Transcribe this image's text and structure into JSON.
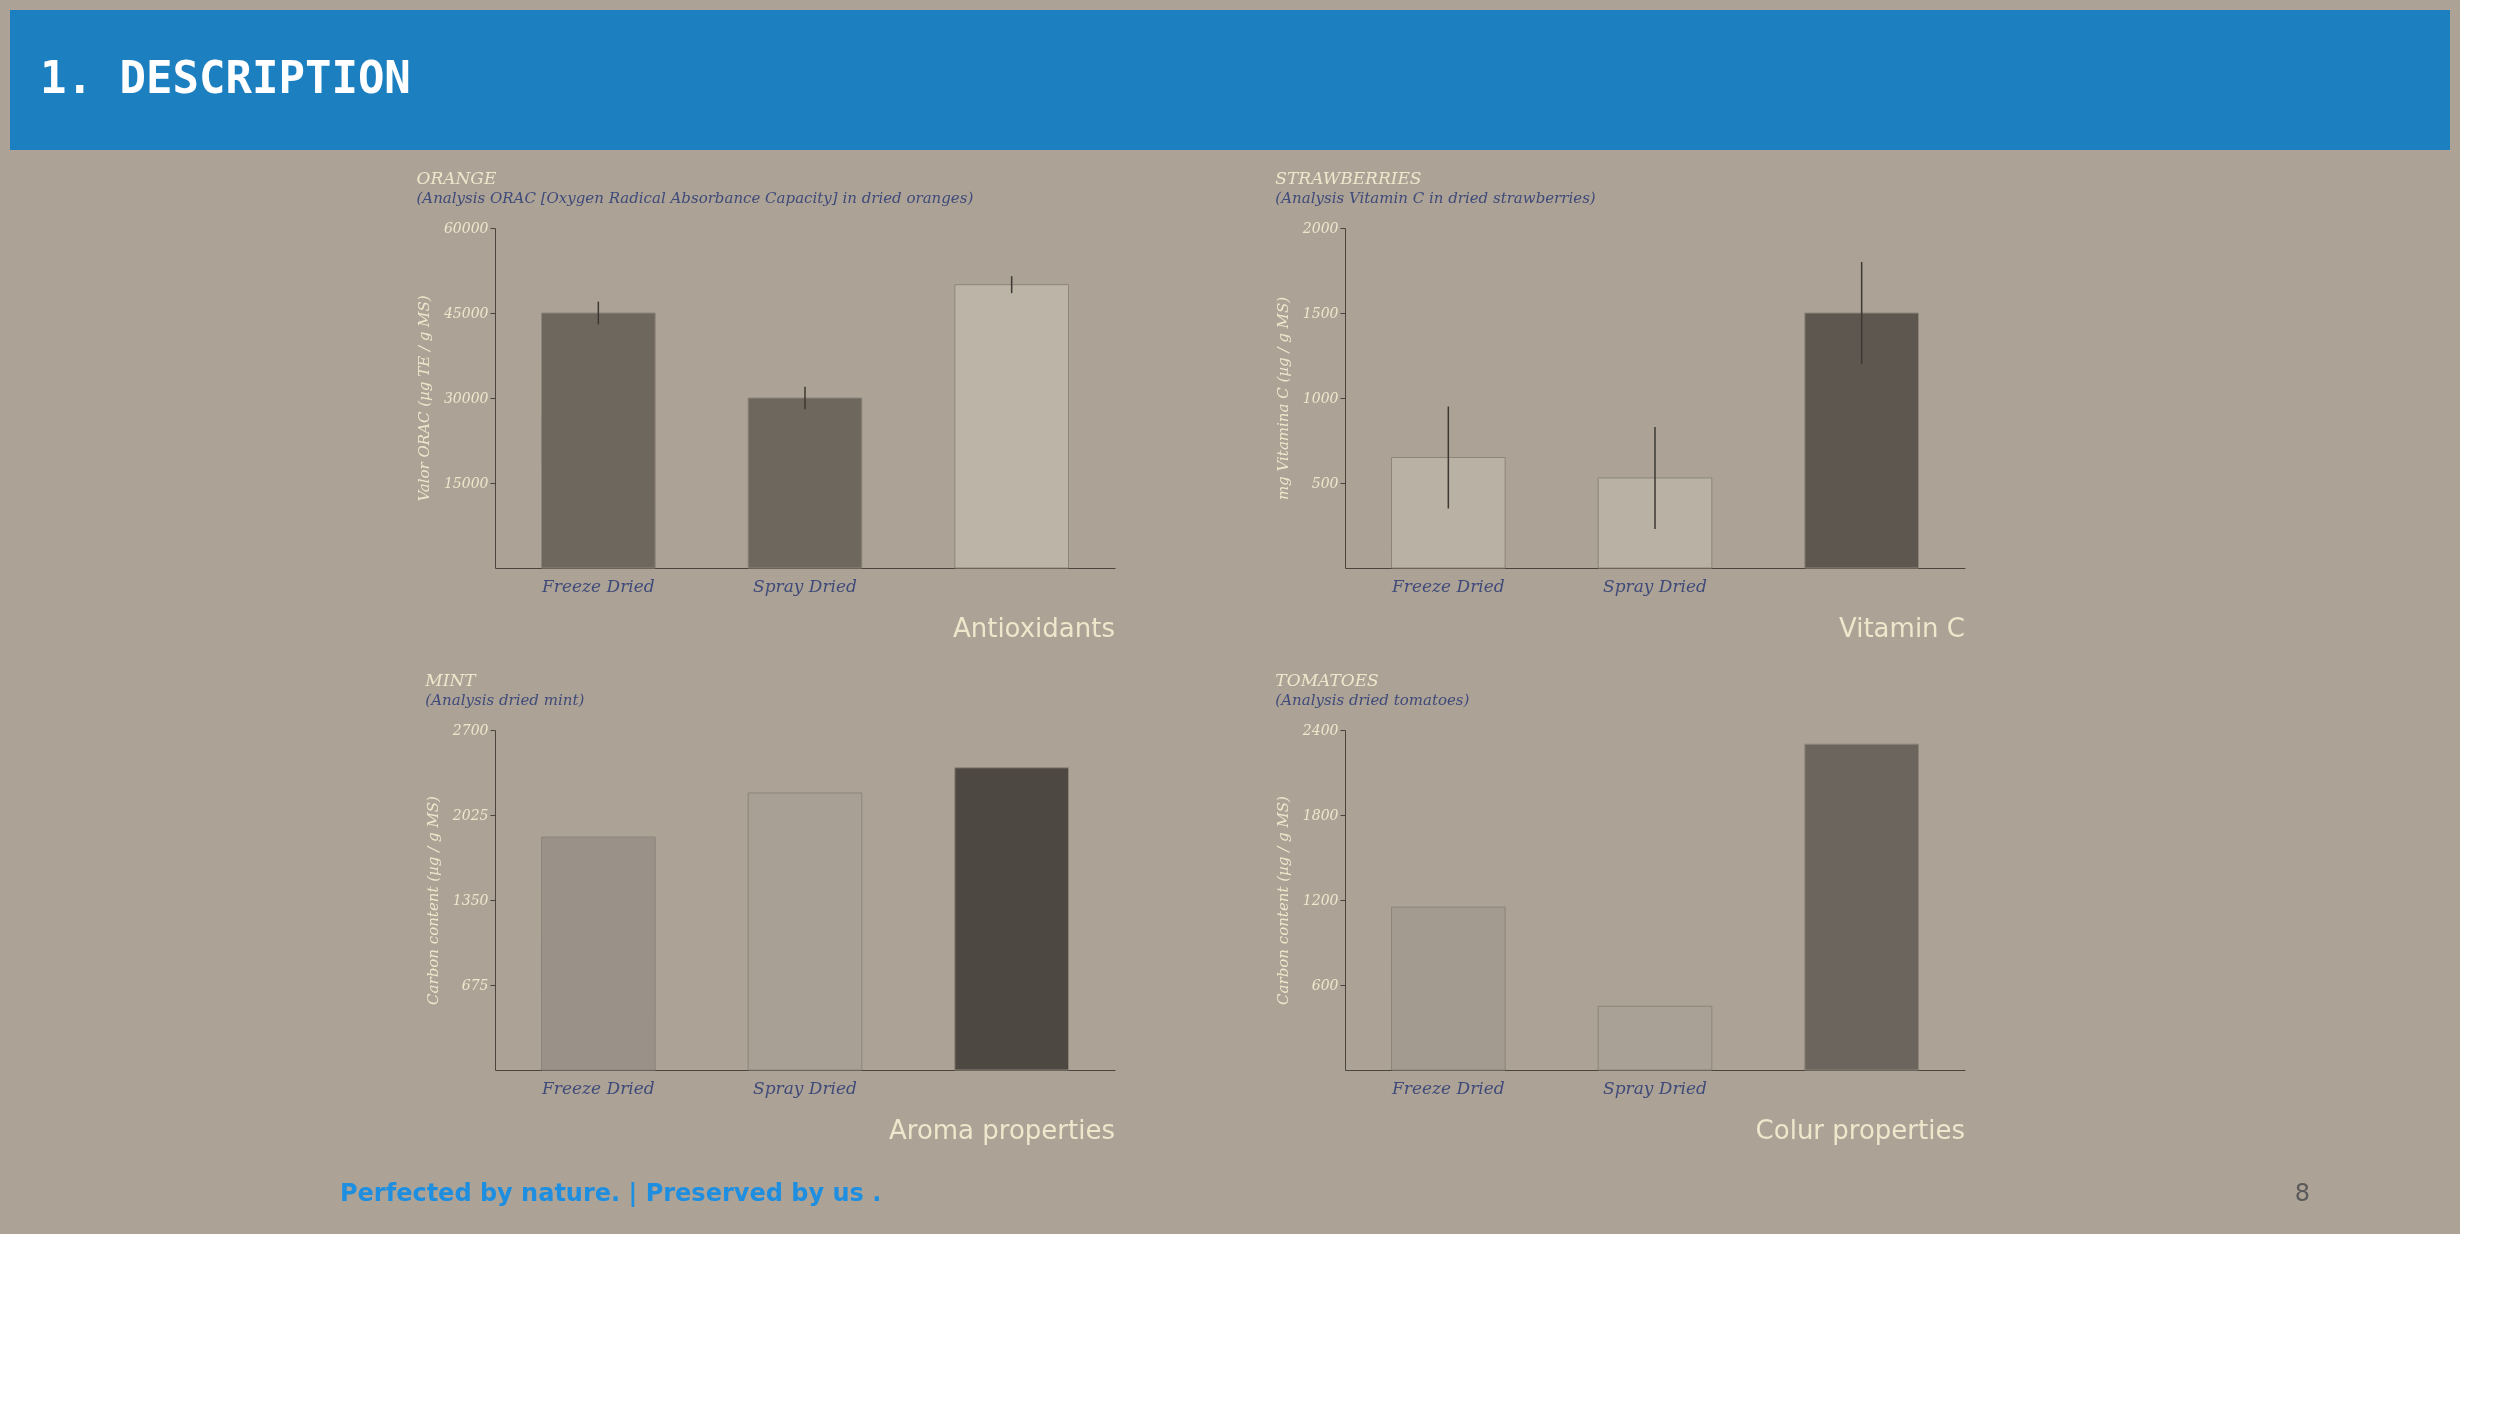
{
  "chart_data": [
    {
      "type": "other",
      "title": "1. DESCRIPTION"
    },
    {
      "type": "bar",
      "title": "ORANGE",
      "subtitle": "(Analysis ORAC [Oxygen Radical Absorbance Capacity] in dried oranges)",
      "ylabel": "Valor ORAC (µg TE / g MS)",
      "categories": [
        "Freeze Dried",
        "Spray Dried",
        null
      ],
      "values": [
        45000,
        30000,
        50000
      ],
      "errors": [
        2000,
        2000,
        1500
      ],
      "colors": [
        "#6e675e",
        "#6e675e",
        "#bdb4a8"
      ],
      "ylim": [
        0,
        60000
      ],
      "yticks": [
        15000,
        30000,
        45000,
        60000
      ],
      "annotations": [
        "Antioxidants"
      ]
    },
    {
      "type": "bar",
      "title": "STRAWBERRIES",
      "subtitle": "(Analysis Vitamin C in dried strawberries)",
      "ylabel": "mg Vitamina C (µg / g MS)",
      "categories": [
        "Freeze Dried",
        "Spray Dried",
        null
      ],
      "values": [
        650,
        530,
        1500
      ],
      "errors": [
        300,
        300,
        300
      ],
      "colors": [
        "#bab1a5",
        "#bab1a5",
        "#5e5750"
      ],
      "ylim": [
        0,
        2000
      ],
      "yticks": [
        500,
        1000,
        1500,
        2000
      ],
      "annotations": [
        "Vitamin C"
      ]
    },
    {
      "type": "bar",
      "title": "MINT",
      "subtitle": "(Analysis dried mint)",
      "ylabel": "Carbon content (µg / g MS)",
      "categories": [
        "Freeze Dried",
        "Spray Dried",
        null
      ],
      "values": [
        1850,
        2200,
        2400
      ],
      "colors": [
        "#9a9288",
        "#a9a095",
        "#4e4842"
      ],
      "ylim": [
        0,
        2700
      ],
      "yticks": [
        675,
        1350,
        2025,
        2700
      ],
      "annotations": [
        "Aroma properties"
      ]
    },
    {
      "type": "bar",
      "title": "TOMATOES",
      "subtitle": "(Analysis dried tomatoes)",
      "ylabel": "Carbon content (µg / g MS)",
      "categories": [
        "Freeze Dried",
        "Spray Dried",
        null
      ],
      "values": [
        1150,
        450,
        2300
      ],
      "colors": [
        "#a39b90",
        "#aaa196",
        "#6b655e"
      ],
      "ylim": [
        0,
        2400
      ],
      "yticks": [
        600,
        1200,
        1800,
        2400
      ],
      "annotations": [
        "Colur properties"
      ]
    },
    {
      "type": "other",
      "annotations": [
        "Perfected by nature. | Preserved by us .",
        "8"
      ]
    }
  ]
}
